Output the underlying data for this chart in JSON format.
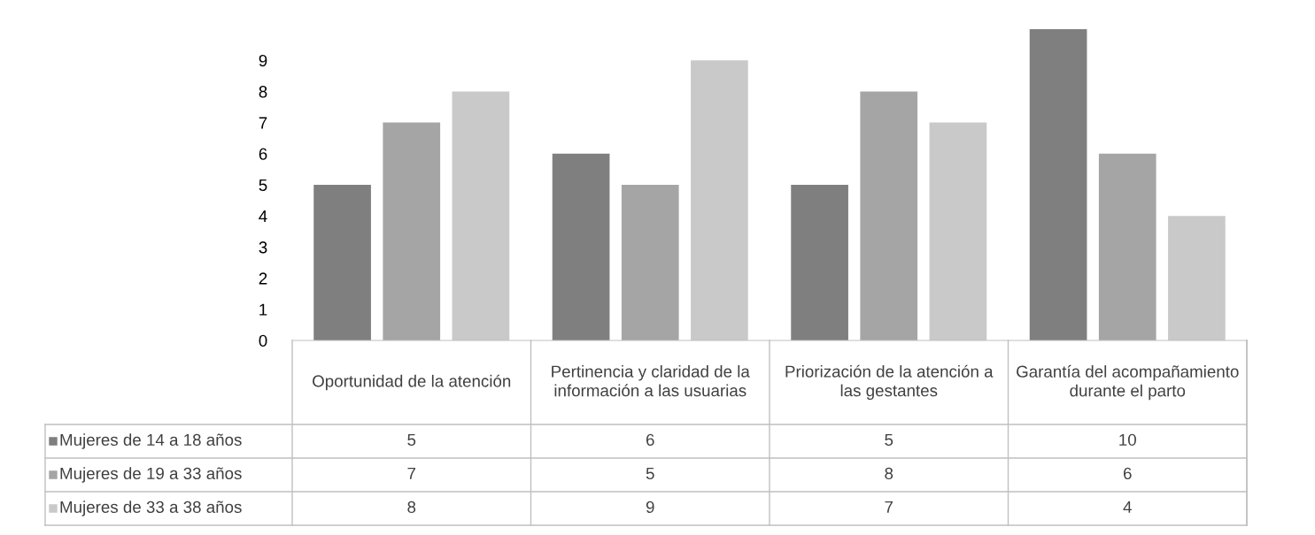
{
  "chart_data": {
    "type": "bar",
    "categories": [
      "Oportunidad de la atención",
      "Pertinencia y claridad de la información a las usuarias",
      "Priorización de la atención a las gestantes",
      "Garantía del acompañamiento durante el parto"
    ],
    "series": [
      {
        "name": "Mujeres de 14 a 18 años",
        "color": "#7f7f7f",
        "values": [
          5,
          6,
          5,
          10
        ]
      },
      {
        "name": "Mujeres de 19 a 33 años",
        "color": "#a5a5a5",
        "values": [
          7,
          5,
          8,
          6
        ]
      },
      {
        "name": "Mujeres de 33 a 38 años",
        "color": "#c9c9c9",
        "values": [
          8,
          9,
          7,
          4
        ]
      }
    ],
    "ylim": [
      0,
      10
    ],
    "yticks": [
      0,
      1,
      2,
      3,
      4,
      5,
      6,
      7,
      8,
      9
    ],
    "grid": false,
    "legend": "bottom",
    "data_labels": true
  }
}
